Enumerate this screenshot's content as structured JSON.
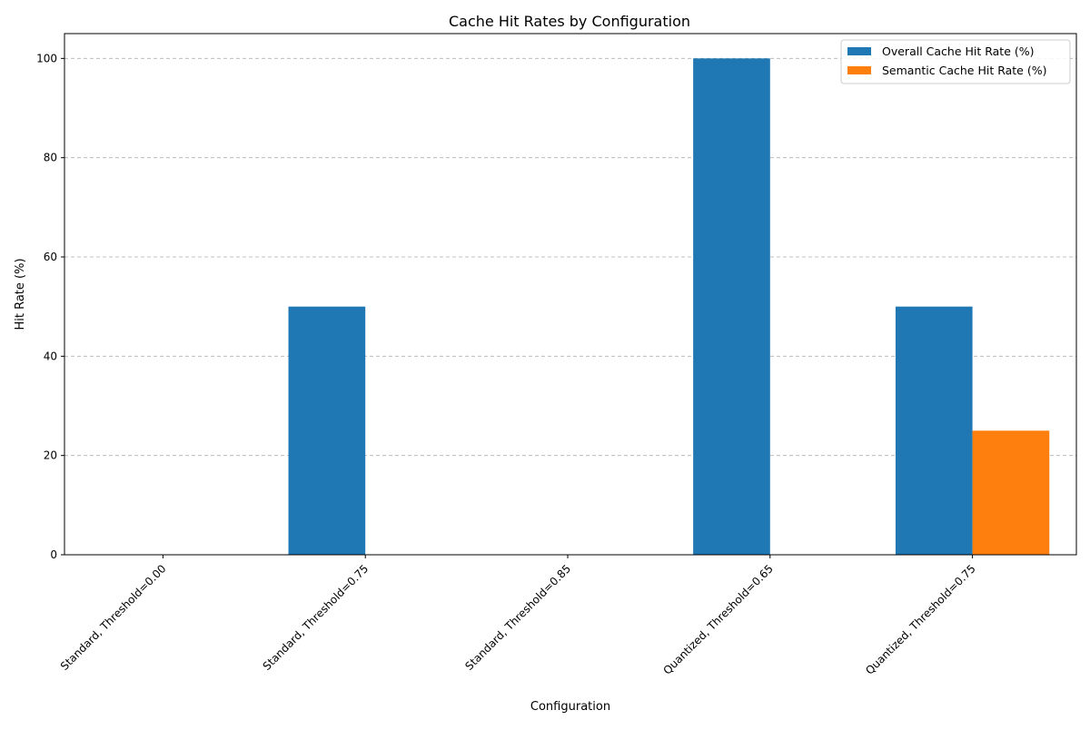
{
  "chart_data": {
    "type": "bar",
    "title": "Cache Hit Rates by Configuration",
    "xlabel": "Configuration",
    "ylabel": "Hit Rate (%)",
    "categories": [
      "Standard, Threshold=0.00",
      "Standard, Threshold=0.75",
      "Standard, Threshold=0.85",
      "Quantized, Threshold=0.65",
      "Quantized, Threshold=0.75"
    ],
    "series": [
      {
        "name": "Overall Cache Hit Rate (%)",
        "values": [
          0,
          50,
          0,
          100,
          50
        ],
        "color": "#1f77b4"
      },
      {
        "name": "Semantic Cache Hit Rate (%)",
        "values": [
          0,
          0,
          0,
          0,
          25
        ],
        "color": "#ff7f0e"
      }
    ],
    "ylim": [
      0,
      105
    ],
    "yticks": [
      0,
      20,
      40,
      60,
      80,
      100
    ],
    "grid": "y-dashed",
    "legend_position": "top-right"
  }
}
